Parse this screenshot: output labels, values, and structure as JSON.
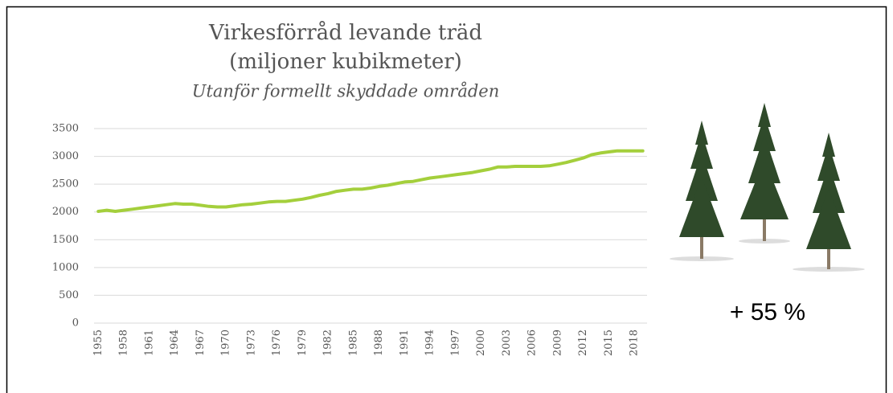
{
  "chart_data": {
    "type": "line",
    "title": "Virkesförråd levande träd",
    "title_line2": "(miljoner kubikmeter)",
    "subtitle": "Utanför formellt skyddade områden",
    "annotation": "+ 55 %",
    "categories": [
      "1955",
      null,
      null,
      "1958",
      null,
      null,
      "1961",
      null,
      null,
      "1964",
      null,
      null,
      "1967",
      null,
      null,
      "1970",
      null,
      null,
      "1973",
      null,
      null,
      "1976",
      null,
      null,
      "1979",
      null,
      null,
      "1982",
      null,
      null,
      "1985",
      null,
      null,
      "1988",
      null,
      null,
      "1991",
      null,
      null,
      "1994",
      null,
      null,
      "1997",
      null,
      null,
      "2000",
      null,
      null,
      "2003",
      null,
      null,
      "2006",
      null,
      null,
      "2009",
      null,
      null,
      "2012",
      null,
      null,
      "2015",
      null,
      null,
      "2018",
      null
    ],
    "values": [
      2010,
      2030,
      2010,
      2030,
      2050,
      2070,
      2090,
      2110,
      2130,
      2150,
      2140,
      2140,
      2120,
      2100,
      2090,
      2090,
      2110,
      2130,
      2140,
      2160,
      2180,
      2190,
      2190,
      2210,
      2230,
      2260,
      2300,
      2330,
      2370,
      2390,
      2410,
      2410,
      2430,
      2460,
      2480,
      2510,
      2540,
      2550,
      2580,
      2610,
      2630,
      2650,
      2670,
      2690,
      2710,
      2740,
      2770,
      2810,
      2810,
      2820,
      2820,
      2820,
      2820,
      2830,
      2860,
      2890,
      2930,
      2970,
      3030,
      3060,
      3080,
      3100,
      3100,
      3100,
      3100
    ],
    "color": "#a4cf3c",
    "ylim": [
      0,
      3500
    ],
    "yticks": [
      0,
      500,
      1000,
      1500,
      2000,
      2500,
      3000,
      3500
    ],
    "grid": true
  }
}
